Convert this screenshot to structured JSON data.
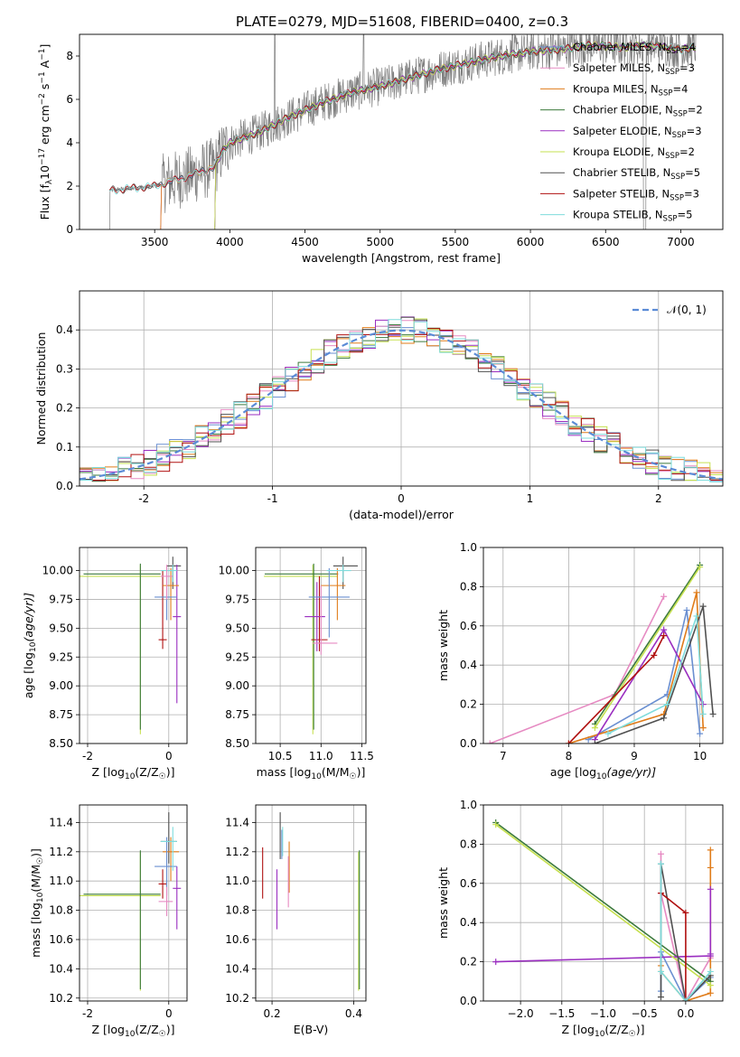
{
  "page": {
    "title": "PLATE=0279, MJD=51608, FIBERID=0400, z=0.3"
  },
  "colors": {
    "chabrier_miles": "#6a8fd1",
    "salpeter_miles": "#e68ac2",
    "kroupa_miles": "#e07c1a",
    "chabrier_elodie": "#3c7a3c",
    "salpeter_elodie": "#9a2ec0",
    "kroupa_elodie": "#c6e050",
    "chabrier_stelib": "#505050",
    "salpeter_stelib": "#b01010",
    "kroupa_stelib": "#7fdcdc",
    "data": "#7f7f7f",
    "normal": "#5b8bd6",
    "grid": "#b0b0b0"
  },
  "chart_data": [
    {
      "id": "spectrum",
      "type": "line",
      "title": "PLATE=0279, MJD=51608, FIBERID=0400, z=0.3",
      "xlabel": "wavelength [Angstrom, rest frame]",
      "ylabel": "Flux [f_λ 10^-17 erg cm^-2 s^-1 A^-1]",
      "xlim": [
        3000,
        7280
      ],
      "ylim": [
        0,
        9
      ],
      "xticks": [
        3500,
        4000,
        4500,
        5000,
        5500,
        6000,
        6500,
        7000
      ],
      "yticks": [
        0,
        2,
        4,
        6,
        8
      ],
      "grid": false,
      "legend": "top-right",
      "legend_entries": [
        {
          "key": "chabrier_miles",
          "label": "Chabrier MILES, N",
          "sub": "SSP",
          "val": "=4"
        },
        {
          "key": "salpeter_miles",
          "label": "Salpeter MILES, N",
          "sub": "SSP",
          "val": "=3"
        },
        {
          "key": "kroupa_miles",
          "label": "Kroupa MILES, N",
          "sub": "SSP",
          "val": "=4"
        },
        {
          "key": "chabrier_elodie",
          "label": "Chabrier ELODIE, N",
          "sub": "SSP",
          "val": "=2"
        },
        {
          "key": "salpeter_elodie",
          "label": "Salpeter ELODIE, N",
          "sub": "SSP",
          "val": "=3"
        },
        {
          "key": "kroupa_elodie",
          "label": "Kroupa ELODIE, N",
          "sub": "SSP",
          "val": "=2"
        },
        {
          "key": "chabrier_stelib",
          "label": "Chabrier STELIB, N",
          "sub": "SSP",
          "val": "=5"
        },
        {
          "key": "salpeter_stelib",
          "label": "Salpeter STELIB, N",
          "sub": "SSP",
          "val": "=3"
        },
        {
          "key": "kroupa_stelib",
          "label": "Kroupa STELIB, N",
          "sub": "SSP",
          "val": "=5"
        }
      ],
      "model_continuum": {
        "x": [
          3200,
          3350,
          3500,
          3700,
          3900,
          3950,
          4000,
          4200,
          4400,
          4600,
          4800,
          5000,
          5200,
          5400,
          5600,
          5800,
          6000,
          6200,
          6400,
          6600,
          6800,
          7000,
          7100
        ],
        "y": [
          1.8,
          1.9,
          2.0,
          2.4,
          2.9,
          3.6,
          4.0,
          4.5,
          5.2,
          5.8,
          6.3,
          6.6,
          7.0,
          7.4,
          7.7,
          8.0,
          8.2,
          8.3,
          8.5,
          8.4,
          8.5,
          8.3,
          8.4
        ]
      },
      "data_noise": {
        "x_start": 3200,
        "x_end": 7100,
        "clean_until": 3550,
        "spike_x": [
          4300,
          4890,
          5880,
          6150,
          6760
        ],
        "dip_x": [
          6760
        ]
      }
    },
    {
      "id": "residuals",
      "type": "step",
      "xlabel": "(data-model)/error",
      "ylabel": "Normed distribution",
      "xlim": [
        -2.5,
        2.5
      ],
      "ylim": [
        0,
        0.5
      ],
      "xticks": [
        -2,
        -1,
        0,
        1,
        2
      ],
      "yticks": [
        0.0,
        0.1,
        0.2,
        0.3,
        0.4
      ],
      "grid": true,
      "legend": "top-right",
      "legend_label": "𝒩(0, 1)",
      "bin_width": 0.1,
      "bins_per_series": 50
    },
    {
      "id": "age_vs_Z",
      "type": "errorbar",
      "xlabel": "Z [log10(Z/Z☉)]",
      "ylabel": "age [log10(age/yr)]",
      "xlim": [
        -2.2,
        0.45
      ],
      "ylim": [
        8.5,
        10.2
      ],
      "xticks": [
        -2,
        0
      ],
      "yticks": [
        8.5,
        8.75,
        9.0,
        9.25,
        9.5,
        9.75,
        10.0
      ],
      "grid": true,
      "points": [
        {
          "key": "kroupa_elodie",
          "x": -0.7,
          "xerr": [
            1.5,
            0.5
          ],
          "y": 9.95,
          "yerr": [
            1.37,
            0.1
          ]
        },
        {
          "key": "chabrier_elodie",
          "x": -0.7,
          "xerr": [
            1.4,
            0.5
          ],
          "y": 9.97,
          "yerr": [
            1.35,
            0.09
          ]
        },
        {
          "key": "chabrier_stelib",
          "x": 0.1,
          "xerr": [
            0.15,
            0.2
          ],
          "y": 10.04,
          "yerr": [
            0.2,
            0.08
          ]
        },
        {
          "key": "salpeter_stelib",
          "x": -0.15,
          "xerr": [
            0.1,
            0.1
          ],
          "y": 9.4,
          "yerr": [
            0.08,
            0.6
          ]
        },
        {
          "key": "salpeter_elodie",
          "x": 0.2,
          "xerr": [
            0.1,
            0.1
          ],
          "y": 9.6,
          "yerr": [
            0.75,
            0.45
          ]
        },
        {
          "key": "kroupa_miles",
          "x": 0.05,
          "xerr": [
            0.2,
            0.2
          ],
          "y": 9.87,
          "yerr": [
            0.3,
            0.15
          ]
        },
        {
          "key": "chabrier_miles",
          "x": -0.05,
          "xerr": [
            0.3,
            0.25
          ],
          "y": 9.77,
          "yerr": [
            0.2,
            0.25
          ]
        },
        {
          "key": "kroupa_stelib",
          "x": 0.1,
          "xerr": [
            0.3,
            0.1
          ],
          "y": 10.0,
          "yerr": [
            0.1,
            0.05
          ]
        },
        {
          "key": "salpeter_miles",
          "x": -0.05,
          "xerr": [
            0.15,
            0.15
          ],
          "y": 9.95,
          "yerr": [
            0.2,
            0.1
          ]
        }
      ]
    },
    {
      "id": "age_vs_mass",
      "type": "errorbar",
      "xlabel": "mass [log10(M/M☉)]",
      "xlim": [
        10.2,
        11.55
      ],
      "ylim": [
        8.5,
        10.2
      ],
      "xticks": [
        10.5,
        11.0,
        11.5
      ],
      "yticks": [
        8.5,
        8.75,
        9.0,
        9.25,
        9.5,
        9.75,
        10.0
      ],
      "grid": true,
      "points": [
        {
          "key": "kroupa_elodie",
          "x": 10.9,
          "xerr": [
            0.6,
            0.3
          ],
          "y": 9.95,
          "yerr": [
            1.37,
            0.1
          ]
        },
        {
          "key": "chabrier_elodie",
          "x": 10.91,
          "xerr": [
            0.6,
            0.3
          ],
          "y": 9.97,
          "yerr": [
            1.35,
            0.09
          ]
        },
        {
          "key": "chabrier_stelib",
          "x": 11.27,
          "xerr": [
            0.12,
            0.18
          ],
          "y": 10.04,
          "yerr": [
            0.2,
            0.08
          ]
        },
        {
          "key": "salpeter_stelib",
          "x": 10.98,
          "xerr": [
            0.1,
            0.1
          ],
          "y": 9.4,
          "yerr": [
            0.1,
            0.55
          ]
        },
        {
          "key": "salpeter_elodie",
          "x": 10.95,
          "xerr": [
            0.15,
            0.1
          ],
          "y": 9.6,
          "yerr": [
            0.3,
            0.3
          ]
        },
        {
          "key": "kroupa_miles",
          "x": 11.2,
          "xerr": [
            0.2,
            0.1
          ],
          "y": 9.87,
          "yerr": [
            0.3,
            0.15
          ]
        },
        {
          "key": "chabrier_miles",
          "x": 11.1,
          "xerr": [
            0.25,
            0.25
          ],
          "y": 9.77,
          "yerr": [
            0.35,
            0.25
          ]
        },
        {
          "key": "kroupa_stelib",
          "x": 11.27,
          "xerr": [
            0.2,
            0.1
          ],
          "y": 10.0,
          "yerr": [
            0.1,
            0.05
          ]
        },
        {
          "key": "salpeter_miles",
          "x": 11.0,
          "xerr": [
            0.1,
            0.2
          ],
          "y": 9.37,
          "yerr": [
            0.1,
            0.5
          ]
        }
      ]
    },
    {
      "id": "weight_vs_age",
      "type": "line",
      "xlabel": "age [log10(age/yr)]",
      "ylabel": "mass weight",
      "xlim": [
        6.7,
        10.35
      ],
      "ylim": [
        0,
        1
      ],
      "xticks": [
        7,
        8,
        9,
        10
      ],
      "yticks": [
        0.0,
        0.2,
        0.4,
        0.6,
        0.8,
        1.0
      ],
      "grid": true,
      "series": [
        {
          "key": "chabrier_miles",
          "x": [
            8.3,
            9.5,
            9.8,
            10.0
          ],
          "y": [
            0.02,
            0.25,
            0.68,
            0.05
          ]
        },
        {
          "key": "salpeter_miles",
          "x": [
            6.8,
            8.7,
            9.45
          ],
          "y": [
            0.0,
            0.25,
            0.75
          ]
        },
        {
          "key": "kroupa_miles",
          "x": [
            8.0,
            9.45,
            9.95,
            10.05
          ],
          "y": [
            0.0,
            0.15,
            0.77,
            0.08
          ]
        },
        {
          "key": "chabrier_elodie",
          "x": [
            8.4,
            10.0
          ],
          "y": [
            0.1,
            0.91
          ]
        },
        {
          "key": "salpeter_elodie",
          "x": [
            8.4,
            9.45,
            10.05
          ],
          "y": [
            0.02,
            0.58,
            0.2
          ]
        },
        {
          "key": "kroupa_elodie",
          "x": [
            8.4,
            10.0
          ],
          "y": [
            0.08,
            0.9
          ]
        },
        {
          "key": "chabrier_stelib",
          "x": [
            8.4,
            9.45,
            10.05,
            10.2
          ],
          "y": [
            0.0,
            0.13,
            0.7,
            0.15
          ]
        },
        {
          "key": "salpeter_stelib",
          "x": [
            8.0,
            9.3,
            9.45
          ],
          "y": [
            0.0,
            0.45,
            0.55
          ]
        },
        {
          "key": "kroupa_stelib",
          "x": [
            8.6,
            9.5,
            9.95,
            10.05
          ],
          "y": [
            0.05,
            0.2,
            0.65,
            0.15
          ]
        }
      ]
    },
    {
      "id": "mass_vs_Z",
      "type": "errorbar",
      "xlabel": "Z [log10(Z/Z☉)]",
      "ylabel": "mass [log10(M/M☉)]",
      "xlim": [
        -2.2,
        0.45
      ],
      "ylim": [
        10.18,
        11.52
      ],
      "xticks": [
        -2,
        0
      ],
      "yticks": [
        10.2,
        10.4,
        10.6,
        10.8,
        11.0,
        11.2,
        11.4
      ],
      "grid": true,
      "points": [
        {
          "key": "kroupa_elodie",
          "x": -0.7,
          "xerr": [
            1.5,
            0.5
          ],
          "y": 10.9,
          "yerr": [
            0.65,
            0.3
          ]
        },
        {
          "key": "chabrier_elodie",
          "x": -0.7,
          "xerr": [
            1.4,
            0.5
          ],
          "y": 10.91,
          "yerr": [
            0.65,
            0.3
          ]
        },
        {
          "key": "chabrier_stelib",
          "x": 0.0,
          "xerr": [
            0.2,
            0.2
          ],
          "y": 11.27,
          "yerr": [
            0.15,
            0.2
          ]
        },
        {
          "key": "salpeter_stelib",
          "x": -0.15,
          "xerr": [
            0.1,
            0.1
          ],
          "y": 10.98,
          "yerr": [
            0.1,
            0.1
          ]
        },
        {
          "key": "salpeter_elodie",
          "x": 0.2,
          "xerr": [
            0.1,
            0.1
          ],
          "y": 10.95,
          "yerr": [
            0.28,
            0.15
          ]
        },
        {
          "key": "kroupa_miles",
          "x": 0.05,
          "xerr": [
            0.2,
            0.2
          ],
          "y": 11.2,
          "yerr": [
            0.2,
            0.1
          ]
        },
        {
          "key": "chabrier_miles",
          "x": -0.05,
          "xerr": [
            0.3,
            0.25
          ],
          "y": 11.1,
          "yerr": [
            0.2,
            0.2
          ]
        },
        {
          "key": "kroupa_stelib",
          "x": 0.1,
          "xerr": [
            0.3,
            0.1
          ],
          "y": 11.27,
          "yerr": [
            0.2,
            0.1
          ]
        },
        {
          "key": "salpeter_miles",
          "x": -0.05,
          "xerr": [
            0.2,
            0.15
          ],
          "y": 10.86,
          "yerr": [
            0.1,
            0.1
          ]
        }
      ]
    },
    {
      "id": "mass_vs_ebv",
      "type": "errorbar",
      "xlabel": "E(B-V)",
      "xlim": [
        0.16,
        0.43
      ],
      "ylim": [
        10.18,
        11.52
      ],
      "xticks": [
        0.2,
        0.4
      ],
      "yticks": [
        10.2,
        10.4,
        10.6,
        10.8,
        11.0,
        11.2,
        11.4
      ],
      "grid": true,
      "points": [
        {
          "key": "kroupa_elodie",
          "x": 0.412,
          "y": 10.9,
          "yerr": [
            0.65,
            0.3
          ]
        },
        {
          "key": "chabrier_elodie",
          "x": 0.414,
          "y": 10.91,
          "yerr": [
            0.65,
            0.3
          ]
        },
        {
          "key": "chabrier_stelib",
          "x": 0.22,
          "y": 11.27,
          "yerr": [
            0.12,
            0.2
          ]
        },
        {
          "key": "salpeter_stelib",
          "x": 0.177,
          "y": 10.98,
          "yerr": [
            0.1,
            0.25
          ]
        },
        {
          "key": "salpeter_elodie",
          "x": 0.212,
          "y": 10.9,
          "yerr": [
            0.23,
            0.18
          ]
        },
        {
          "key": "kroupa_miles",
          "x": 0.242,
          "y": 11.12,
          "yerr": [
            0.2,
            0.15
          ]
        },
        {
          "key": "chabrier_miles",
          "x": 0.224,
          "y": 11.25,
          "yerr": [
            0.1,
            0.1
          ]
        },
        {
          "key": "kroupa_stelib",
          "x": 0.226,
          "y": 11.27,
          "yerr": [
            0.1,
            0.1
          ]
        },
        {
          "key": "salpeter_miles",
          "x": 0.24,
          "y": 10.97,
          "yerr": [
            0.15,
            0.2
          ]
        }
      ]
    },
    {
      "id": "weight_vs_Z",
      "type": "line",
      "xlabel": "Z [log10(Z/Z☉)]",
      "ylabel": "mass weight",
      "xlim": [
        -2.45,
        0.45
      ],
      "ylim": [
        0,
        1
      ],
      "xticks": [
        -2.0,
        -1.5,
        -1.0,
        -0.5,
        0.0
      ],
      "yticks": [
        0.0,
        0.2,
        0.4,
        0.6,
        0.8,
        1.0
      ],
      "grid": true,
      "series": [
        {
          "key": "chabrier_miles",
          "x": [
            -0.3,
            -0.3,
            0.0,
            0.3
          ],
          "y": [
            0.05,
            0.25,
            0.0,
            0.12
          ]
        },
        {
          "key": "salpeter_miles",
          "x": [
            -0.3,
            -0.3,
            0.0,
            0.3
          ],
          "y": [
            0.75,
            0.55,
            0.0,
            0.22
          ]
        },
        {
          "key": "kroupa_miles",
          "x": [
            -0.3,
            -0.3,
            0.0,
            0.3,
            0.3,
            0.3
          ],
          "y": [
            0.18,
            0.15,
            0.0,
            0.04,
            0.68,
            0.77
          ]
        },
        {
          "key": "chabrier_elodie",
          "x": [
            -2.3,
            0.3
          ],
          "y": [
            0.91,
            0.1
          ]
        },
        {
          "key": "salpeter_elodie",
          "x": [
            -2.3,
            0.3,
            0.3,
            0.3
          ],
          "y": [
            0.2,
            0.23,
            0.57,
            0.24
          ]
        },
        {
          "key": "kroupa_elodie",
          "x": [
            -2.3,
            0.3
          ],
          "y": [
            0.9,
            0.08
          ]
        },
        {
          "key": "chabrier_stelib",
          "x": [
            -0.3,
            -0.3,
            0.0,
            0.3
          ],
          "y": [
            0.02,
            0.7,
            0.0,
            0.13
          ]
        },
        {
          "key": "salpeter_stelib",
          "x": [
            -0.3,
            0.0,
            0.0
          ],
          "y": [
            0.55,
            0.45,
            0.0
          ]
        },
        {
          "key": "kroupa_stelib",
          "x": [
            -0.3,
            -0.3,
            0.0,
            0.3
          ],
          "y": [
            0.7,
            0.15,
            0.0,
            0.15
          ]
        }
      ]
    }
  ]
}
